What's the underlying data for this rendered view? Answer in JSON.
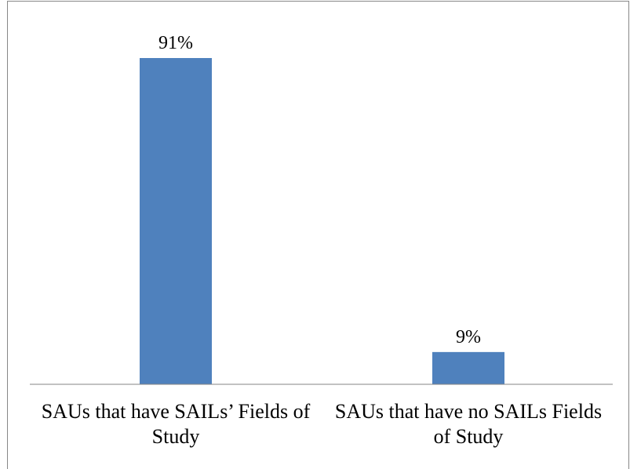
{
  "chart_data": {
    "type": "bar",
    "categories": [
      "SAUs that have SAILs’ Fields of Study",
      "SAUs that have no SAILs Fields of Study"
    ],
    "values": [
      91,
      9
    ],
    "value_labels": [
      "91%",
      "9%"
    ],
    "color": "#4f81bd"
  }
}
